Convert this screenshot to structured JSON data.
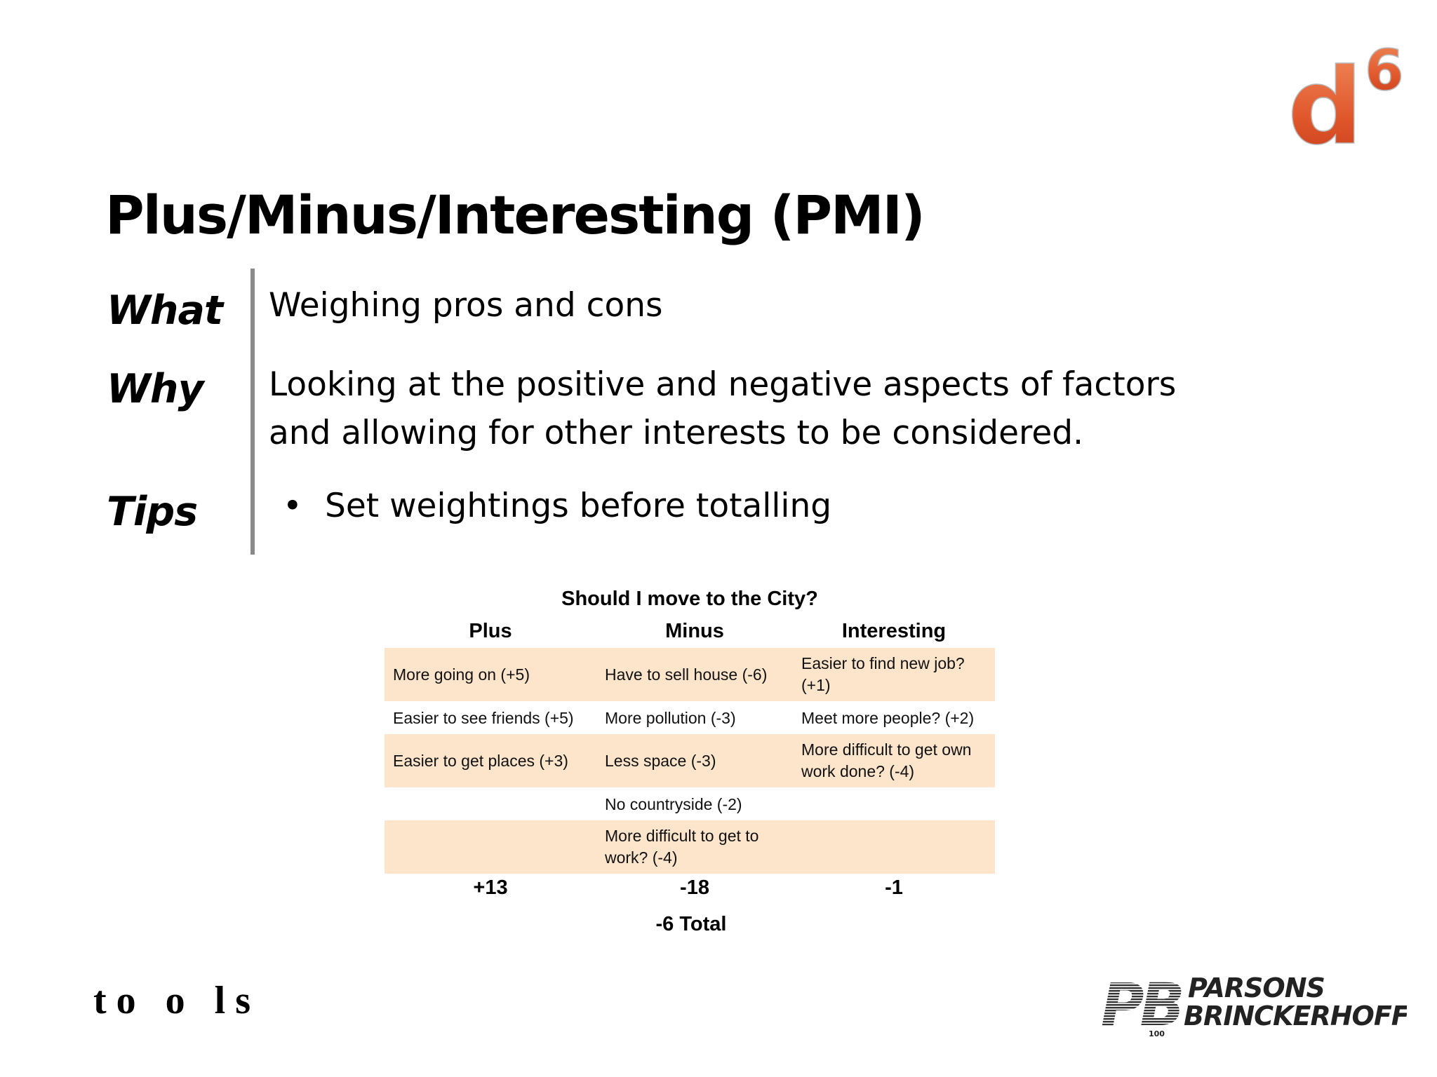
{
  "slide": {
    "title": "Plus/Minus/Interesting (PMI)",
    "what_label": "What",
    "what_text": "Weighing pros and cons",
    "why_label": "Why",
    "why_line1": "Looking at the positive and negative aspects of factors",
    "why_line2": "and allowing for other interests to be considered.",
    "tips_label": "Tips",
    "tips": [
      "Set weightings before totalling"
    ],
    "footer": "to o ls",
    "logo_d": "d",
    "logo_sup": "6",
    "company_line1": "PARSONS",
    "company_line2": "BRINCKERHOFF",
    "company_mark": "PB",
    "company_years": "100"
  },
  "pmi_table": {
    "title": "Should I move to the City?",
    "headers": [
      "Plus",
      "Minus",
      "Interesting"
    ],
    "rows": [
      [
        "More going on (+5)",
        "Have to sell house (-6)",
        "Easier to find new job? (+1)"
      ],
      [
        "Easier to see friends (+5)",
        "More pollution (-3)",
        "Meet more people? (+2)"
      ],
      [
        "Easier to get places (+3)",
        "Less space (-3)",
        "More difficult to get own work done? (-4)"
      ],
      [
        "",
        "No countryside (-2)",
        ""
      ],
      [
        "",
        "More difficult to get to work? (-4)",
        ""
      ]
    ],
    "totals": [
      "+13",
      "-18",
      "-1"
    ],
    "grand_total": "-6 Total"
  },
  "colors": {
    "row_shade": "#fde5cc",
    "logo_orange": "#e0562b",
    "divider": "#8a8a8a"
  }
}
